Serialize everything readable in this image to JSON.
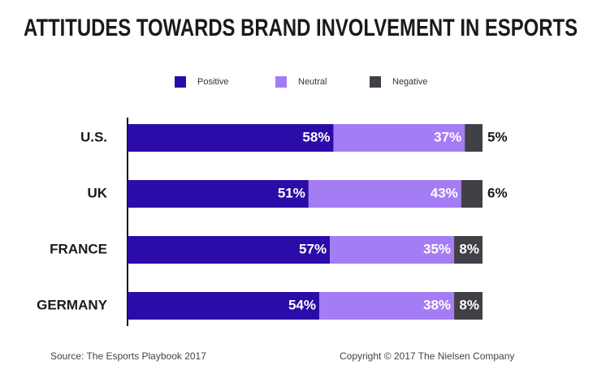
{
  "chart_data": {
    "type": "bar",
    "orientation": "horizontal",
    "stacked": true,
    "title": "ATTITUDES TOWARDS BRAND INVOLVEMENT IN ESPORTS",
    "categories": [
      "U.S.",
      "UK",
      "FRANCE",
      "GERMANY"
    ],
    "series": [
      {
        "name": "Positive",
        "color": "#2c0ca8",
        "values": [
          58,
          51,
          57,
          54
        ],
        "value_labels": [
          "58%",
          "51%",
          "57%",
          "54%"
        ]
      },
      {
        "name": "Neutral",
        "color": "#a47cf4",
        "values": [
          37,
          43,
          35,
          38
        ],
        "value_labels": [
          "37%",
          "43%",
          "35%",
          "38%"
        ]
      },
      {
        "name": "Negative",
        "color": "#414046",
        "values": [
          5,
          6,
          8,
          8
        ],
        "value_labels": [
          "5%",
          "6%",
          "8%",
          "8%"
        ]
      }
    ],
    "xlim": [
      0,
      100
    ],
    "legend": "top",
    "source": "Source: The Esports Playbook 2017",
    "copyright": "Copyright © 2017 The Nielsen Company"
  }
}
